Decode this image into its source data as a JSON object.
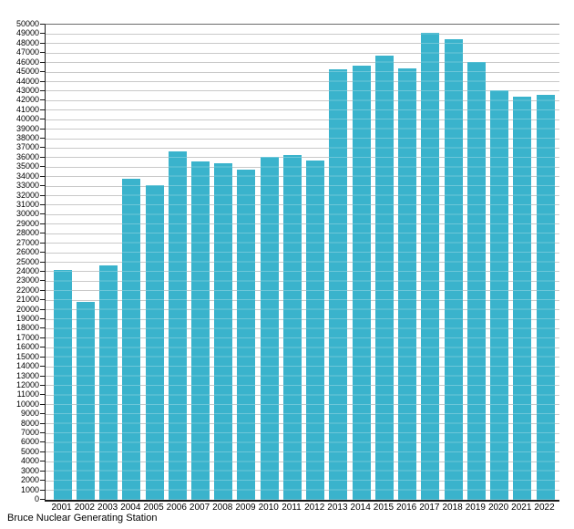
{
  "footer": {
    "title": "Bruce Nuclear Generating Station"
  },
  "chart_data": {
    "type": "bar",
    "title": "Bruce Nuclear Generating Station",
    "xlabel": "",
    "ylabel": "",
    "categories": [
      "2001",
      "2002",
      "2003",
      "2004",
      "2005",
      "2006",
      "2007",
      "2008",
      "2009",
      "2010",
      "2011",
      "2012",
      "2013",
      "2014",
      "2015",
      "2016",
      "2017",
      "2018",
      "2019",
      "2020",
      "2021",
      "2022"
    ],
    "values": [
      24200,
      20800,
      24700,
      33800,
      33100,
      36700,
      35600,
      35400,
      34700,
      36100,
      36300,
      35700,
      45300,
      45700,
      46700,
      45400,
      49100,
      48500,
      46100,
      43100,
      42400,
      42600
    ],
    "ylim": [
      0,
      50000
    ],
    "y_tick_step": 1000,
    "grid": true,
    "legend": "none",
    "bar_color": "#3ab3cc",
    "gridline_color": "#c9c9c9",
    "axis_color": "#1a1a1a"
  }
}
